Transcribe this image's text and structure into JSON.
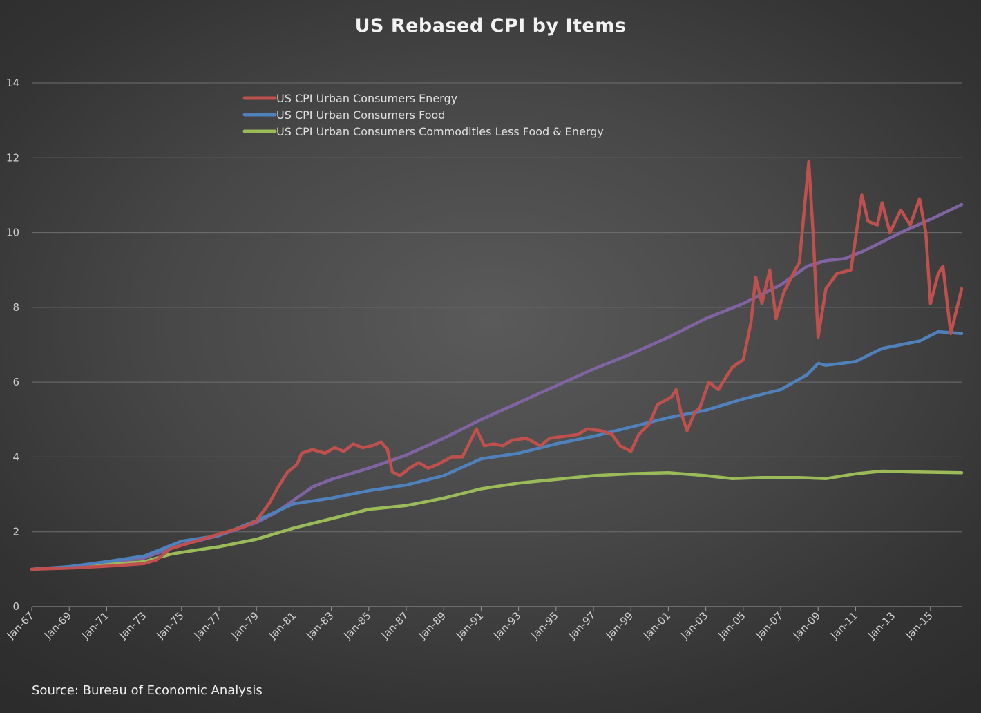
{
  "chart_data": {
    "type": "line",
    "title": "US Rebased CPI by Items",
    "source": "Source: Bureau of Economic Analysis",
    "xlabel": "",
    "ylabel": "",
    "ylim": [
      0,
      14
    ],
    "yticks": [
      0,
      2,
      4,
      6,
      8,
      10,
      12,
      14
    ],
    "xlim": [
      "1967-01",
      "2016-09"
    ],
    "xtick_labels": [
      "Jan-67",
      "Jan-69",
      "Jan-71",
      "Jan-73",
      "Jan-75",
      "Jan-77",
      "Jan-79",
      "Jan-81",
      "Jan-83",
      "Jan-85",
      "Jan-87",
      "Jan-89",
      "Jan-91",
      "Jan-93",
      "Jan-95",
      "Jan-97",
      "Jan-99",
      "Jan-01",
      "Jan-03",
      "Jan-05",
      "Jan-07",
      "Jan-09",
      "Jan-11",
      "Jan-13",
      "Jan-15"
    ],
    "grid": "horizontal",
    "legend_position": "top-left",
    "series": [
      {
        "name": "US CPI Urban Consumers Energy",
        "color": "#c0504d",
        "points": [
          [
            "1967-01",
            1.0
          ],
          [
            "1969-01",
            1.03
          ],
          [
            "1971-01",
            1.08
          ],
          [
            "1973-01",
            1.15
          ],
          [
            "1973-09",
            1.25
          ],
          [
            "1974-06",
            1.55
          ],
          [
            "1975-06",
            1.7
          ],
          [
            "1976-06",
            1.85
          ],
          [
            "1977-06",
            2.0
          ],
          [
            "1978-06",
            2.15
          ],
          [
            "1979-01",
            2.3
          ],
          [
            "1979-09",
            2.75
          ],
          [
            "1980-03",
            3.2
          ],
          [
            "1980-09",
            3.6
          ],
          [
            "1981-03",
            3.8
          ],
          [
            "1981-06",
            4.1
          ],
          [
            "1982-01",
            4.2
          ],
          [
            "1982-09",
            4.1
          ],
          [
            "1983-03",
            4.25
          ],
          [
            "1983-09",
            4.15
          ],
          [
            "1984-03",
            4.35
          ],
          [
            "1984-09",
            4.25
          ],
          [
            "1985-03",
            4.3
          ],
          [
            "1985-09",
            4.4
          ],
          [
            "1986-01",
            4.2
          ],
          [
            "1986-04",
            3.6
          ],
          [
            "1986-09",
            3.5
          ],
          [
            "1987-03",
            3.7
          ],
          [
            "1987-09",
            3.85
          ],
          [
            "1988-03",
            3.7
          ],
          [
            "1988-09",
            3.8
          ],
          [
            "1989-06",
            4.0
          ],
          [
            "1990-01",
            4.0
          ],
          [
            "1990-10",
            4.75
          ],
          [
            "1991-03",
            4.3
          ],
          [
            "1991-09",
            4.35
          ],
          [
            "1992-03",
            4.3
          ],
          [
            "1992-09",
            4.45
          ],
          [
            "1993-06",
            4.5
          ],
          [
            "1994-03",
            4.3
          ],
          [
            "1994-09",
            4.5
          ],
          [
            "1995-06",
            4.55
          ],
          [
            "1996-03",
            4.6
          ],
          [
            "1996-09",
            4.75
          ],
          [
            "1997-06",
            4.7
          ],
          [
            "1998-01",
            4.6
          ],
          [
            "1998-06",
            4.3
          ],
          [
            "1999-01",
            4.15
          ],
          [
            "1999-06",
            4.6
          ],
          [
            "2000-01",
            4.9
          ],
          [
            "2000-06",
            5.4
          ],
          [
            "2001-03",
            5.6
          ],
          [
            "2001-06",
            5.8
          ],
          [
            "2001-09",
            5.2
          ],
          [
            "2002-01",
            4.7
          ],
          [
            "2002-06",
            5.2
          ],
          [
            "2002-09",
            5.3
          ],
          [
            "2003-03",
            6.0
          ],
          [
            "2003-09",
            5.8
          ],
          [
            "2004-06",
            6.4
          ],
          [
            "2005-01",
            6.6
          ],
          [
            "2005-06",
            7.6
          ],
          [
            "2005-09",
            8.8
          ],
          [
            "2006-01",
            8.1
          ],
          [
            "2006-06",
            9.0
          ],
          [
            "2006-10",
            7.7
          ],
          [
            "2007-03",
            8.4
          ],
          [
            "2007-09",
            8.9
          ],
          [
            "2008-01",
            9.2
          ],
          [
            "2008-07",
            11.9
          ],
          [
            "2008-10",
            9.8
          ],
          [
            "2009-01",
            7.2
          ],
          [
            "2009-06",
            8.5
          ],
          [
            "2010-01",
            8.9
          ],
          [
            "2010-10",
            9.0
          ],
          [
            "2011-05",
            11.0
          ],
          [
            "2011-09",
            10.3
          ],
          [
            "2012-03",
            10.2
          ],
          [
            "2012-06",
            10.8
          ],
          [
            "2012-11",
            10.0
          ],
          [
            "2013-06",
            10.6
          ],
          [
            "2013-12",
            10.2
          ],
          [
            "2014-06",
            10.9
          ],
          [
            "2014-10",
            10.0
          ],
          [
            "2015-01",
            8.1
          ],
          [
            "2015-06",
            8.9
          ],
          [
            "2015-09",
            9.1
          ],
          [
            "2016-02",
            7.3
          ],
          [
            "2016-09",
            8.5
          ]
        ]
      },
      {
        "name": "US CPI Urban Consumers Food",
        "color": "#4f81bd",
        "points": [
          [
            "1967-01",
            1.0
          ],
          [
            "1969-01",
            1.07
          ],
          [
            "1971-01",
            1.2
          ],
          [
            "1973-01",
            1.35
          ],
          [
            "1974-01",
            1.55
          ],
          [
            "1975-01",
            1.75
          ],
          [
            "1977-01",
            1.9
          ],
          [
            "1979-01",
            2.3
          ],
          [
            "1981-01",
            2.75
          ],
          [
            "1983-01",
            2.9
          ],
          [
            "1985-01",
            3.1
          ],
          [
            "1987-01",
            3.25
          ],
          [
            "1989-01",
            3.5
          ],
          [
            "1991-01",
            3.95
          ],
          [
            "1993-01",
            4.1
          ],
          [
            "1995-01",
            4.35
          ],
          [
            "1997-01",
            4.55
          ],
          [
            "1999-01",
            4.8
          ],
          [
            "2001-01",
            5.05
          ],
          [
            "2003-01",
            5.25
          ],
          [
            "2005-01",
            5.55
          ],
          [
            "2007-01",
            5.8
          ],
          [
            "2008-06",
            6.2
          ],
          [
            "2009-01",
            6.5
          ],
          [
            "2009-06",
            6.45
          ],
          [
            "2011-01",
            6.55
          ],
          [
            "2012-06",
            6.9
          ],
          [
            "2013-06",
            7.0
          ],
          [
            "2014-06",
            7.1
          ],
          [
            "2015-06",
            7.35
          ],
          [
            "2016-09",
            7.3
          ]
        ]
      },
      {
        "name": "US CPI Urban Consumers Commodities Less Food & Energy",
        "color": "#9bbb59",
        "points": [
          [
            "1967-01",
            1.0
          ],
          [
            "1969-01",
            1.05
          ],
          [
            "1971-01",
            1.12
          ],
          [
            "1973-01",
            1.2
          ],
          [
            "1974-06",
            1.4
          ],
          [
            "1975-01",
            1.45
          ],
          [
            "1977-01",
            1.6
          ],
          [
            "1979-01",
            1.8
          ],
          [
            "1981-01",
            2.1
          ],
          [
            "1983-01",
            2.35
          ],
          [
            "1985-01",
            2.6
          ],
          [
            "1987-01",
            2.7
          ],
          [
            "1989-01",
            2.9
          ],
          [
            "1991-01",
            3.15
          ],
          [
            "1993-01",
            3.3
          ],
          [
            "1995-01",
            3.4
          ],
          [
            "1997-01",
            3.5
          ],
          [
            "1999-01",
            3.55
          ],
          [
            "2001-01",
            3.58
          ],
          [
            "2003-01",
            3.5
          ],
          [
            "2004-06",
            3.42
          ],
          [
            "2006-01",
            3.45
          ],
          [
            "2008-01",
            3.45
          ],
          [
            "2009-06",
            3.42
          ],
          [
            "2011-01",
            3.55
          ],
          [
            "2012-06",
            3.62
          ],
          [
            "2014-01",
            3.6
          ],
          [
            "2016-09",
            3.58
          ]
        ]
      },
      {
        "name": "",
        "color": "#8064a2",
        "points": [
          [
            "1967-01",
            1.0
          ],
          [
            "1969-01",
            1.06
          ],
          [
            "1971-01",
            1.17
          ],
          [
            "1973-01",
            1.3
          ],
          [
            "1975-01",
            1.65
          ],
          [
            "1977-01",
            1.9
          ],
          [
            "1979-01",
            2.25
          ],
          [
            "1980-01",
            2.5
          ],
          [
            "1981-01",
            2.85
          ],
          [
            "1982-01",
            3.2
          ],
          [
            "1983-01",
            3.4
          ],
          [
            "1985-01",
            3.7
          ],
          [
            "1987-01",
            4.05
          ],
          [
            "1989-01",
            4.5
          ],
          [
            "1991-01",
            5.0
          ],
          [
            "1993-01",
            5.45
          ],
          [
            "1995-01",
            5.9
          ],
          [
            "1997-01",
            6.35
          ],
          [
            "1999-01",
            6.75
          ],
          [
            "2001-01",
            7.2
          ],
          [
            "2003-01",
            7.7
          ],
          [
            "2005-01",
            8.1
          ],
          [
            "2007-01",
            8.6
          ],
          [
            "2008-06",
            9.1
          ],
          [
            "2009-06",
            9.25
          ],
          [
            "2010-06",
            9.3
          ],
          [
            "2011-06",
            9.5
          ],
          [
            "2013-06",
            10.0
          ],
          [
            "2015-01",
            10.35
          ],
          [
            "2016-09",
            10.75
          ]
        ]
      }
    ]
  }
}
